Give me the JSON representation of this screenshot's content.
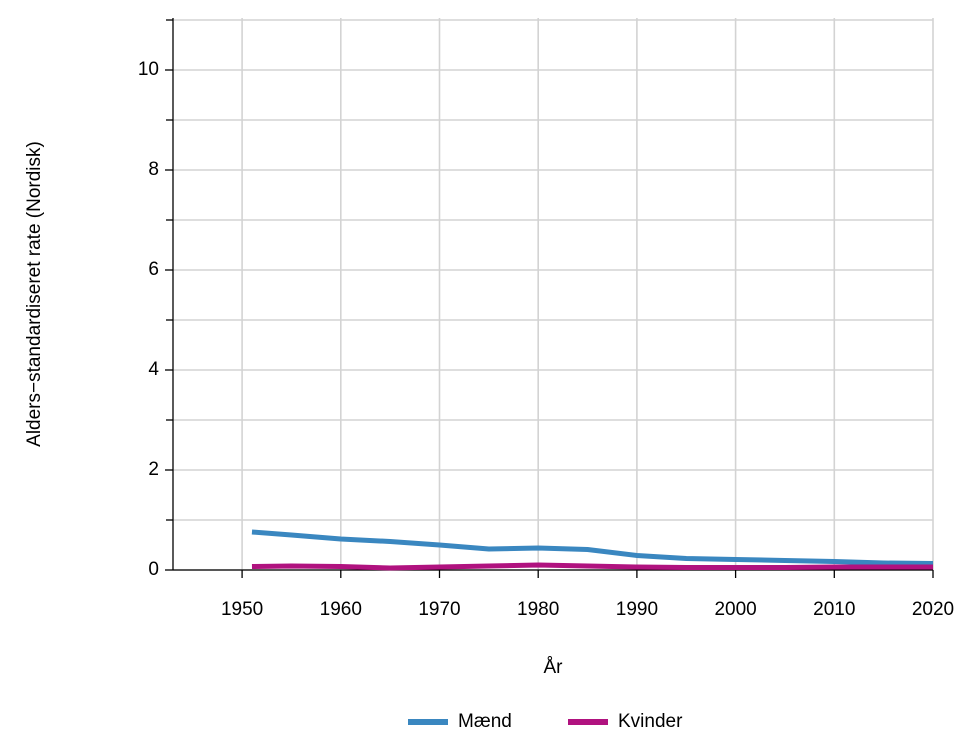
{
  "chart_data": {
    "type": "line",
    "x_label": "År",
    "y_label": "Alders−standardiseret rate (Nordisk)",
    "x": [
      1951,
      1955,
      1960,
      1965,
      1970,
      1975,
      1980,
      1985,
      1990,
      1995,
      2000,
      2005,
      2010,
      2015,
      2020
    ],
    "series": [
      {
        "name": "Mænd",
        "color": "#3a87c0",
        "values": [
          0.76,
          0.7,
          0.62,
          0.57,
          0.5,
          0.42,
          0.44,
          0.41,
          0.29,
          0.23,
          0.21,
          0.19,
          0.17,
          0.14,
          0.13
        ]
      },
      {
        "name": "Kvinder",
        "color": "#b0127f",
        "values": [
          0.07,
          0.08,
          0.07,
          0.04,
          0.06,
          0.08,
          0.1,
          0.08,
          0.06,
          0.05,
          0.05,
          0.05,
          0.06,
          0.06,
          0.06
        ]
      }
    ],
    "xlim": [
      1943,
      2020
    ],
    "xticks": [
      1950,
      1960,
      1970,
      1980,
      1990,
      2000,
      2010,
      2020
    ],
    "ylim": [
      0,
      11
    ],
    "yticks": [
      0,
      2,
      4,
      6,
      8,
      10
    ],
    "minor_yticks": [
      1,
      3,
      5,
      7,
      9,
      11
    ],
    "grid": true,
    "legend": "bottom"
  }
}
